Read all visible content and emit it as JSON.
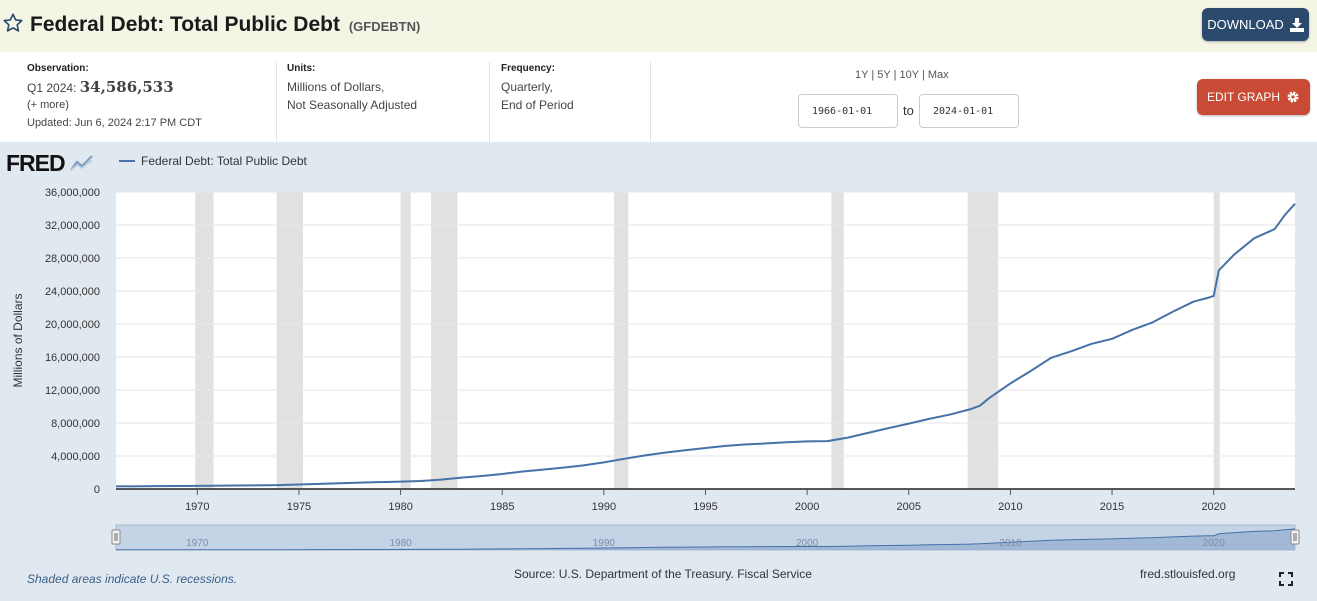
{
  "header": {
    "title": "Federal Debt: Total Public Debt",
    "series_id": "(GFDEBTN)",
    "download_label": "DOWNLOAD"
  },
  "meta": {
    "observation_label": "Observation:",
    "observation_period": "Q1 2024:",
    "observation_value": "34,586,533",
    "more_link": "(+ more)",
    "updated": "Updated: Jun 6, 2024 2:17 PM CDT",
    "units_label": "Units:",
    "units_line1": "Millions of Dollars,",
    "units_line2": "Not Seasonally Adjusted",
    "frequency_label": "Frequency:",
    "frequency_line1": "Quarterly,",
    "frequency_line2": "End of Period"
  },
  "controls": {
    "range_1y": "1Y",
    "range_5y": "5Y",
    "range_10y": "10Y",
    "range_max": "Max",
    "start_date": "1966-01-01",
    "end_date": "2024-01-01",
    "to_label": "to",
    "edit_label": "EDIT GRAPH"
  },
  "panel": {
    "logo": "FRED",
    "legend_label": "Federal Debt: Total Public Debt",
    "footer_note": "Shaded areas indicate U.S. recessions.",
    "source": "Source: U.S. Department of the Treasury. Fiscal Service",
    "site": "fred.stlouisfed.org"
  },
  "colors": {
    "line": "#4572a7",
    "recession": "#e1e1e1",
    "panel_bg": "#e1e9f0",
    "download_btn": "#2c4a6e",
    "edit_btn": "#c94a35"
  },
  "chart_data": {
    "type": "line",
    "title": "",
    "ylabel": "Millions of Dollars",
    "xlabel": "",
    "xlim": [
      1966.0,
      2024.0
    ],
    "ylim": [
      0,
      36000000
    ],
    "yticks": [
      0,
      4000000,
      8000000,
      12000000,
      16000000,
      20000000,
      24000000,
      28000000,
      32000000,
      36000000
    ],
    "ytick_labels": [
      "0",
      "4,000,000",
      "8,000,000",
      "12,000,000",
      "16,000,000",
      "20,000,000",
      "24,000,000",
      "28,000,000",
      "32,000,000",
      "36,000,000"
    ],
    "xticks": [
      1970,
      1975,
      1980,
      1985,
      1990,
      1995,
      2000,
      2005,
      2010,
      2015,
      2020
    ],
    "xtick_labels": [
      "1970",
      "1975",
      "1980",
      "1985",
      "1990",
      "1995",
      "2000",
      "2005",
      "2010",
      "2015",
      "2020"
    ],
    "navigator_labels": [
      "1970",
      "1980",
      "1990",
      "2000",
      "2010",
      "2020"
    ],
    "grid": true,
    "legend_position": "top-left",
    "recessions": [
      [
        1969.9,
        1970.8
      ],
      [
        1973.9,
        1975.2
      ],
      [
        1980.0,
        1980.5
      ],
      [
        1981.5,
        1982.8
      ],
      [
        1990.5,
        1991.2
      ],
      [
        2001.2,
        2001.8
      ],
      [
        2007.9,
        2009.4
      ],
      [
        2020.0,
        2020.3
      ]
    ],
    "series": [
      {
        "name": "Federal Debt: Total Public Debt",
        "x": [
          1966.0,
          1968.0,
          1970.0,
          1972.0,
          1974.0,
          1976.0,
          1978.0,
          1980.0,
          1981.0,
          1982.0,
          1983.0,
          1984.0,
          1985.0,
          1986.0,
          1987.0,
          1988.0,
          1989.0,
          1990.0,
          1991.0,
          1992.0,
          1993.0,
          1994.0,
          1995.0,
          1996.0,
          1997.0,
          1998.0,
          1999.0,
          2000.0,
          2001.0,
          2002.0,
          2003.0,
          2004.0,
          2005.0,
          2006.0,
          2007.0,
          2008.0,
          2008.5,
          2009.0,
          2010.0,
          2011.0,
          2012.0,
          2013.0,
          2014.0,
          2015.0,
          2016.0,
          2017.0,
          2018.0,
          2019.0,
          2019.75,
          2020.0,
          2020.25,
          2021.0,
          2022.0,
          2023.0,
          2023.5,
          2024.0
        ],
        "values": [
          320000,
          347000,
          380000,
          427000,
          475000,
          620000,
          771000,
          900000,
          970000,
          1140000,
          1380000,
          1570000,
          1820000,
          2120000,
          2350000,
          2600000,
          2860000,
          3230000,
          3660000,
          4060000,
          4410000,
          4690000,
          4970000,
          5220000,
          5410000,
          5530000,
          5660000,
          5770000,
          5800000,
          6230000,
          6800000,
          7380000,
          7930000,
          8500000,
          9010000,
          9650000,
          10100000,
          11100000,
          12800000,
          14300000,
          15900000,
          16700000,
          17600000,
          18200000,
          19300000,
          20200000,
          21500000,
          22700000,
          23200000,
          23400000,
          26500000,
          28400000,
          30400000,
          31500000,
          33200000,
          34586533
        ]
      }
    ]
  }
}
